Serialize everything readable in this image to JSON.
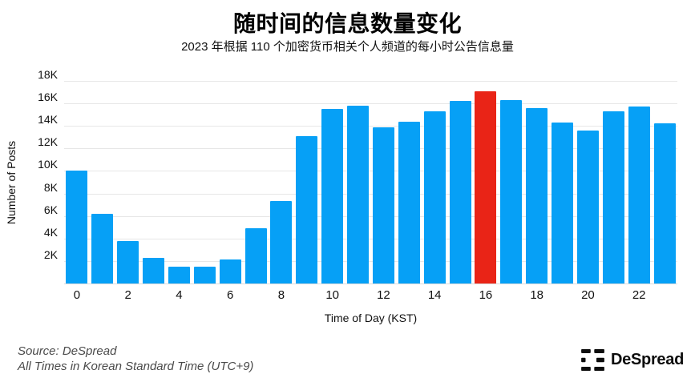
{
  "title": "随时间的信息数量变化",
  "subtitle": "2023 年根据 110 个加密货币相关个人频道的每小时公告信息量",
  "chart_data": {
    "type": "bar",
    "categories": [
      0,
      1,
      2,
      3,
      4,
      5,
      6,
      7,
      8,
      9,
      10,
      11,
      12,
      13,
      14,
      15,
      16,
      17,
      18,
      19,
      20,
      21,
      22,
      23
    ],
    "values": [
      10000,
      6200,
      3800,
      2300,
      1500,
      1500,
      2100,
      4900,
      7300,
      13100,
      15500,
      15800,
      13900,
      14400,
      15300,
      16200,
      17100,
      16300,
      15600,
      14300,
      13600,
      15300,
      15700,
      14200
    ],
    "highlight_index": 16,
    "title": "随时间的信息数量变化",
    "xlabel": "Time of Day (KST)",
    "ylabel": "Number of Posts",
    "ylim": [
      0,
      18000
    ],
    "ytick_step": 2000,
    "ytick_labels": [
      "2K",
      "4K",
      "6K",
      "8K",
      "10K",
      "12K",
      "14K",
      "16K",
      "18K"
    ],
    "xtick_labels": [
      "0",
      "2",
      "4",
      "6",
      "8",
      "10",
      "12",
      "14",
      "16",
      "18",
      "20",
      "22"
    ],
    "xtick_hours": [
      0,
      2,
      4,
      6,
      8,
      10,
      12,
      14,
      16,
      18,
      20,
      22
    ],
    "grid": "horizontal",
    "legend": "none",
    "colors": {
      "bar": "#06a0f6",
      "highlight": "#e92417",
      "gridline": "#e7e7e7"
    }
  },
  "footer": {
    "source_line1": "Source: DeSpread",
    "source_line2": "All Times in Korean Standard Time (UTC+9)",
    "logo_text": "DeSpread"
  }
}
